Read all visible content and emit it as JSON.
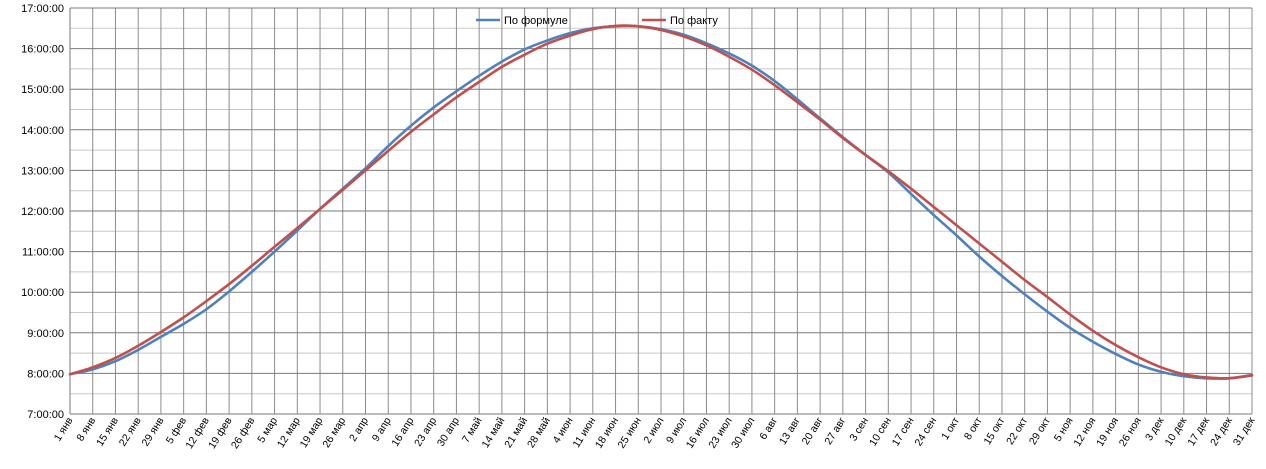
{
  "chart_data": {
    "type": "line",
    "title": "",
    "xlabel": "",
    "ylabel": "",
    "grid": true,
    "legend": "top-center",
    "x_unit": "day of year",
    "x_range": [
      1,
      365
    ],
    "y_unit": "hours",
    "ylim": [
      7,
      17
    ],
    "y_ticks": [
      {
        "value": 7,
        "label": "7:00:00"
      },
      {
        "value": 8,
        "label": "8:00:00"
      },
      {
        "value": 9,
        "label": "9:00:00"
      },
      {
        "value": 10,
        "label": "10:00:00"
      },
      {
        "value": 11,
        "label": "11:00:00"
      },
      {
        "value": 12,
        "label": "12:00:00"
      },
      {
        "value": 13,
        "label": "13:00:00"
      },
      {
        "value": 14,
        "label": "14:00:00"
      },
      {
        "value": 15,
        "label": "15:00:00"
      },
      {
        "value": 16,
        "label": "16:00:00"
      },
      {
        "value": 17,
        "label": "17:00:00"
      }
    ],
    "x_ticks": [
      {
        "day": 1,
        "label": "1 янв"
      },
      {
        "day": 8,
        "label": "8 янв"
      },
      {
        "day": 15,
        "label": "15 янв"
      },
      {
        "day": 22,
        "label": "22 янв"
      },
      {
        "day": 29,
        "label": "29 янв"
      },
      {
        "day": 36,
        "label": "5 фев"
      },
      {
        "day": 43,
        "label": "12 фев"
      },
      {
        "day": 50,
        "label": "19 фев"
      },
      {
        "day": 57,
        "label": "26 фев"
      },
      {
        "day": 64,
        "label": "5 мар"
      },
      {
        "day": 71,
        "label": "12 мар"
      },
      {
        "day": 78,
        "label": "19 мар"
      },
      {
        "day": 85,
        "label": "26 мар"
      },
      {
        "day": 92,
        "label": "2 апр"
      },
      {
        "day": 99,
        "label": "9 апр"
      },
      {
        "day": 106,
        "label": "16 апр"
      },
      {
        "day": 113,
        "label": "23 апр"
      },
      {
        "day": 120,
        "label": "30 апр"
      },
      {
        "day": 127,
        "label": "7 май"
      },
      {
        "day": 134,
        "label": "14 май"
      },
      {
        "day": 141,
        "label": "21 май"
      },
      {
        "day": 148,
        "label": "28 май"
      },
      {
        "day": 155,
        "label": "4 июн"
      },
      {
        "day": 162,
        "label": "11 июн"
      },
      {
        "day": 169,
        "label": "18 июн"
      },
      {
        "day": 176,
        "label": "25 июн"
      },
      {
        "day": 183,
        "label": "2 июл"
      },
      {
        "day": 190,
        "label": "9 июл"
      },
      {
        "day": 197,
        "label": "16 июл"
      },
      {
        "day": 204,
        "label": "23 июл"
      },
      {
        "day": 211,
        "label": "30 июл"
      },
      {
        "day": 218,
        "label": "6 авг"
      },
      {
        "day": 225,
        "label": "13 авг"
      },
      {
        "day": 232,
        "label": "20 авг"
      },
      {
        "day": 239,
        "label": "27 авг"
      },
      {
        "day": 246,
        "label": "3 сен"
      },
      {
        "day": 253,
        "label": "10 сен"
      },
      {
        "day": 260,
        "label": "17 сен"
      },
      {
        "day": 267,
        "label": "24 сен"
      },
      {
        "day": 274,
        "label": "1 окт"
      },
      {
        "day": 281,
        "label": "8 окт"
      },
      {
        "day": 288,
        "label": "15 окт"
      },
      {
        "day": 295,
        "label": "22 окт"
      },
      {
        "day": 302,
        "label": "29 окт"
      },
      {
        "day": 309,
        "label": "5 ноя"
      },
      {
        "day": 316,
        "label": "12 ноя"
      },
      {
        "day": 323,
        "label": "19 ноя"
      },
      {
        "day": 330,
        "label": "26 ноя"
      },
      {
        "day": 337,
        "label": "3 дек"
      },
      {
        "day": 344,
        "label": "10 дек"
      },
      {
        "day": 351,
        "label": "17 дек"
      },
      {
        "day": 358,
        "label": "24 дек"
      },
      {
        "day": 365,
        "label": "31 дек"
      }
    ],
    "series": [
      {
        "name": "По формуле",
        "color": "#4f81bd",
        "points": [
          [
            1,
            7.98
          ],
          [
            8,
            8.1
          ],
          [
            15,
            8.3
          ],
          [
            22,
            8.58
          ],
          [
            29,
            8.9
          ],
          [
            36,
            9.22
          ],
          [
            43,
            9.58
          ],
          [
            50,
            10.02
          ],
          [
            57,
            10.5
          ],
          [
            64,
            11.0
          ],
          [
            71,
            11.52
          ],
          [
            78,
            12.05
          ],
          [
            85,
            12.55
          ],
          [
            92,
            13.05
          ],
          [
            99,
            13.6
          ],
          [
            106,
            14.1
          ],
          [
            113,
            14.55
          ],
          [
            120,
            14.95
          ],
          [
            127,
            15.33
          ],
          [
            134,
            15.68
          ],
          [
            141,
            15.98
          ],
          [
            148,
            16.2
          ],
          [
            155,
            16.38
          ],
          [
            162,
            16.5
          ],
          [
            169,
            16.55
          ],
          [
            176,
            16.55
          ],
          [
            183,
            16.48
          ],
          [
            190,
            16.34
          ],
          [
            197,
            16.13
          ],
          [
            204,
            15.88
          ],
          [
            211,
            15.58
          ],
          [
            218,
            15.2
          ],
          [
            225,
            14.75
          ],
          [
            232,
            14.28
          ],
          [
            239,
            13.82
          ],
          [
            246,
            13.38
          ],
          [
            253,
            12.95
          ],
          [
            260,
            12.42
          ],
          [
            267,
            11.9
          ],
          [
            274,
            11.4
          ],
          [
            281,
            10.88
          ],
          [
            288,
            10.4
          ],
          [
            295,
            9.95
          ],
          [
            302,
            9.52
          ],
          [
            309,
            9.12
          ],
          [
            316,
            8.78
          ],
          [
            323,
            8.48
          ],
          [
            330,
            8.22
          ],
          [
            337,
            8.04
          ],
          [
            344,
            7.93
          ],
          [
            351,
            7.88
          ],
          [
            358,
            7.88
          ],
          [
            365,
            7.96
          ]
        ]
      },
      {
        "name": "По факту",
        "color": "#c0504d",
        "points": [
          [
            1,
            7.98
          ],
          [
            8,
            8.15
          ],
          [
            15,
            8.38
          ],
          [
            22,
            8.68
          ],
          [
            29,
            9.02
          ],
          [
            36,
            9.38
          ],
          [
            43,
            9.78
          ],
          [
            50,
            10.2
          ],
          [
            57,
            10.65
          ],
          [
            64,
            11.12
          ],
          [
            71,
            11.58
          ],
          [
            78,
            12.05
          ],
          [
            85,
            12.52
          ],
          [
            92,
            13.0
          ],
          [
            99,
            13.48
          ],
          [
            106,
            13.95
          ],
          [
            113,
            14.38
          ],
          [
            120,
            14.8
          ],
          [
            127,
            15.18
          ],
          [
            134,
            15.55
          ],
          [
            141,
            15.85
          ],
          [
            148,
            16.12
          ],
          [
            155,
            16.32
          ],
          [
            162,
            16.48
          ],
          [
            169,
            16.56
          ],
          [
            176,
            16.55
          ],
          [
            183,
            16.46
          ],
          [
            190,
            16.3
          ],
          [
            197,
            16.08
          ],
          [
            204,
            15.8
          ],
          [
            211,
            15.48
          ],
          [
            218,
            15.1
          ],
          [
            225,
            14.68
          ],
          [
            232,
            14.25
          ],
          [
            239,
            13.8
          ],
          [
            246,
            13.38
          ],
          [
            253,
            12.98
          ],
          [
            260,
            12.55
          ],
          [
            267,
            12.1
          ],
          [
            274,
            11.65
          ],
          [
            281,
            11.2
          ],
          [
            288,
            10.75
          ],
          [
            295,
            10.3
          ],
          [
            302,
            9.88
          ],
          [
            309,
            9.45
          ],
          [
            316,
            9.05
          ],
          [
            323,
            8.7
          ],
          [
            330,
            8.4
          ],
          [
            337,
            8.15
          ],
          [
            344,
            7.98
          ],
          [
            351,
            7.9
          ],
          [
            358,
            7.88
          ],
          [
            365,
            7.95
          ]
        ]
      }
    ]
  }
}
